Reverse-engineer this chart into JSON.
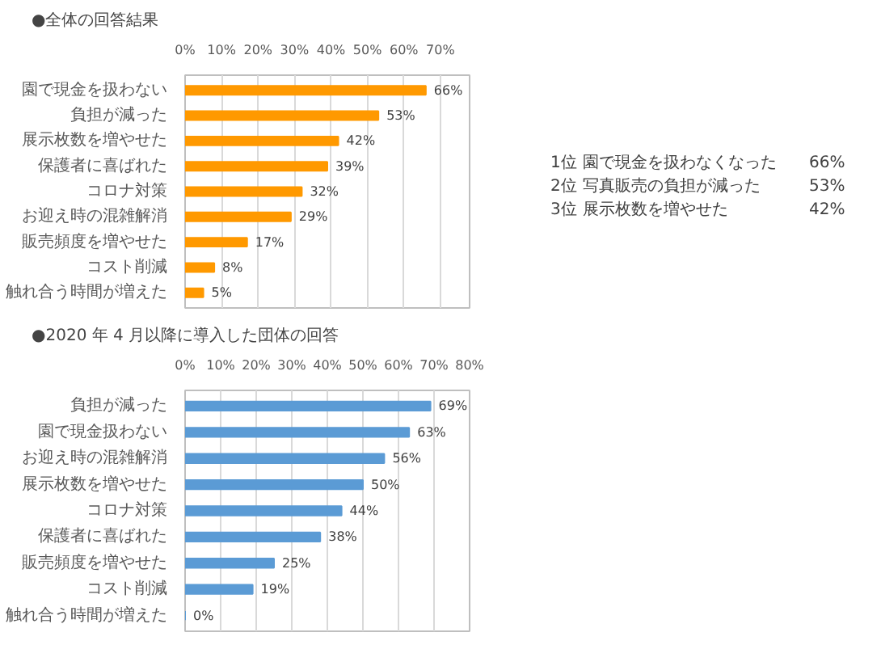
{
  "chart_data": [
    {
      "type": "bar",
      "orientation": "horizontal",
      "title": "●全体の回答結果",
      "categories": [
        "園で現金を扱わない",
        "負担が減った",
        "展示枚数を増やせた",
        "保護者に喜ばれた",
        "コロナ対策",
        "お迎え時の混雑解消",
        "販売頻度を増やせた",
        "コスト削減",
        "触れ合う時間が増えた"
      ],
      "values": [
        66,
        53,
        42,
        39,
        32,
        29,
        17,
        8,
        5
      ],
      "color": "#ff9900",
      "value_labels": [
        "66%",
        "53%",
        "42%",
        "39%",
        "32%",
        "29%",
        "17%",
        "8%",
        "5%"
      ],
      "xlim": [
        0,
        78
      ],
      "xticks": [
        {
          "value": 0,
          "label": "0%"
        },
        {
          "value": 10,
          "label": "10%"
        },
        {
          "value": 20,
          "label": "20%"
        },
        {
          "value": 30,
          "label": "30%"
        },
        {
          "value": 40,
          "label": "40%"
        },
        {
          "value": 50,
          "label": "50%"
        },
        {
          "value": 60,
          "label": "60%"
        },
        {
          "value": 70,
          "label": "70%"
        }
      ],
      "grid": "x"
    },
    {
      "type": "other",
      "annotations": [
        "1位",
        "園で現金を扱わなくなった",
        "66%",
        "2位",
        "写真販売の負担が減った",
        "53%",
        "3位",
        "展示枚数を増やせた",
        "42%"
      ]
    },
    {
      "type": "bar",
      "orientation": "horizontal",
      "title": "●2020 年 4 月以降に導入した団体の回答",
      "categories": [
        "負担が減った",
        "園で現金扱わない",
        "お迎え時の混雑解消",
        "展示枚数を増やせた",
        "コロナ対策",
        "保護者に喜ばれた",
        "販売頻度を増やせた",
        "コスト削減",
        "触れ合う時間が増えた"
      ],
      "values": [
        69,
        63,
        56,
        50,
        44,
        38,
        25,
        19,
        0
      ],
      "color": "#5b9bd5",
      "value_labels": [
        "69%",
        "63%",
        "56%",
        "50%",
        "44%",
        "38%",
        "25%",
        "19%",
        "0%"
      ],
      "xlim": [
        0,
        80
      ],
      "xticks": [
        {
          "value": 0,
          "label": "0%"
        },
        {
          "value": 10,
          "label": "10%"
        },
        {
          "value": 20,
          "label": "20%"
        },
        {
          "value": 30,
          "label": "30%"
        },
        {
          "value": 40,
          "label": "40%"
        },
        {
          "value": 50,
          "label": "50%"
        },
        {
          "value": 60,
          "label": "60%"
        },
        {
          "value": 70,
          "label": "70%"
        },
        {
          "value": 80,
          "label": "80%"
        }
      ],
      "grid": "x"
    }
  ]
}
